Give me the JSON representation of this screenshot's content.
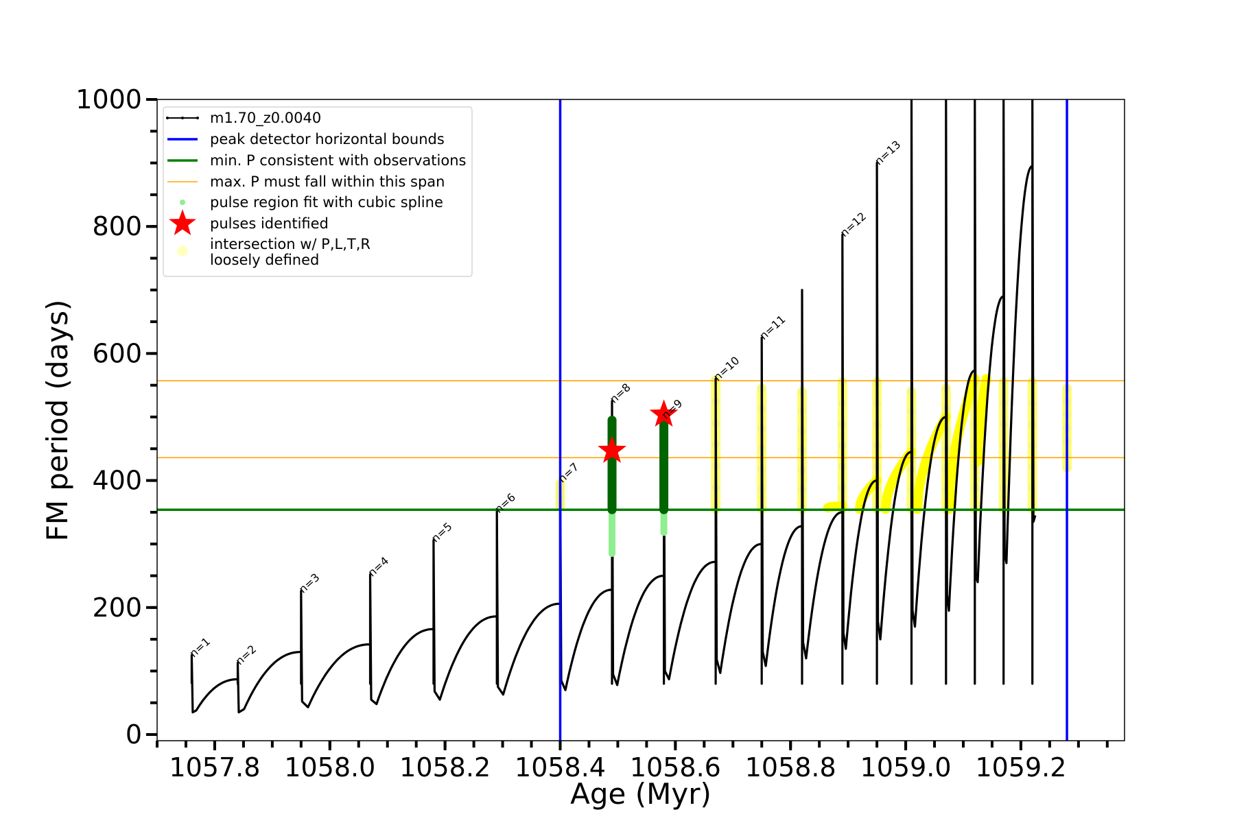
{
  "chart_data": {
    "type": "line",
    "xlabel": "Age (Myr)",
    "ylabel": "FM period (days)",
    "xlim": [
      1057.7,
      1059.38
    ],
    "ylim": [
      -10,
      1000
    ],
    "xticks": [
      1057.8,
      1058.0,
      1058.2,
      1058.4,
      1058.6,
      1058.8,
      1059.0,
      1059.2
    ],
    "xtick_labels": [
      "1057.8",
      "1058.0",
      "1058.2",
      "1058.4",
      "1058.6",
      "1058.8",
      "1059.0",
      "1059.2"
    ],
    "yticks": [
      0,
      200,
      400,
      600,
      800,
      1000
    ],
    "ytick_labels": [
      "0",
      "200",
      "400",
      "600",
      "800",
      "1000"
    ],
    "legend_position": "top-left",
    "legend": [
      {
        "label": "m1.70_z0.0040",
        "kind": "line-marker",
        "color": "#000000"
      },
      {
        "label": "peak detector horizontal bounds",
        "kind": "line",
        "color": "#0000ff"
      },
      {
        "label": "min. P consistent with observations",
        "kind": "line",
        "color": "#008000"
      },
      {
        "label": "max. P must fall within this span",
        "kind": "thin-line",
        "color": "#ffa500"
      },
      {
        "label": "pulse region fit with cubic spline",
        "kind": "dot",
        "color": "#90ee90"
      },
      {
        "label": "pulses identified",
        "kind": "star",
        "color": "#ff0000"
      },
      {
        "label": "intersection w/ P,L,T,R",
        "label2": "loosely defined",
        "kind": "circle",
        "color": "#ffff99"
      }
    ],
    "reference_lines": {
      "blue_vertical_x": [
        1058.4,
        1059.28
      ],
      "green_horizontal_y": 354,
      "orange_horizontal_y": [
        436,
        557
      ]
    },
    "pulses": [
      {
        "label": "n=1",
        "x": 1057.76,
        "peak": 125,
        "drop": 35,
        "trough": 38,
        "next_x": 1057.84
      },
      {
        "label": "n=2",
        "x": 1057.84,
        "peak": 113,
        "drop": 35,
        "trough": 40,
        "next_x": 1057.95
      },
      {
        "label": "n=3",
        "x": 1057.95,
        "peak": 226,
        "drop": 52,
        "trough": 43,
        "next_x": 1058.07
      },
      {
        "label": "n=4",
        "x": 1058.07,
        "peak": 252,
        "drop": 55,
        "trough": 48,
        "next_x": 1058.18
      },
      {
        "label": "n=5",
        "x": 1058.18,
        "peak": 306,
        "drop": 68,
        "trough": 55,
        "next_x": 1058.29
      },
      {
        "label": "n=6",
        "x": 1058.29,
        "peak": 352,
        "drop": 75,
        "trough": 63,
        "next_x": 1058.4
      },
      {
        "label": "n=7",
        "x": 1058.4,
        "peak": 400,
        "drop": 85,
        "trough": 70,
        "next_x": 1058.49
      },
      {
        "label": "n=8",
        "x": 1058.49,
        "peak": 525,
        "drop": 95,
        "trough": 78,
        "next_x": 1058.58
      },
      {
        "label": "n=9",
        "x": 1058.58,
        "peak": 500,
        "drop": 100,
        "trough": 87,
        "next_x": 1058.67
      },
      {
        "label": "n=10",
        "x": 1058.67,
        "peak": 560,
        "drop": 118,
        "trough": 97,
        "next_x": 1058.75
      },
      {
        "label": "n=11",
        "x": 1058.75,
        "peak": 625,
        "drop": 130,
        "trough": 108,
        "next_x": 1058.82
      },
      {
        "label": "",
        "x": 1058.82,
        "peak": 700,
        "drop": 145,
        "trough": 120,
        "next_x": 1058.89
      },
      {
        "label": "n=12",
        "x": 1058.89,
        "peak": 787,
        "drop": 160,
        "trough": 135,
        "next_x": 1058.95
      },
      {
        "label": "n=13",
        "x": 1058.95,
        "peak": 900,
        "drop": 178,
        "trough": 150,
        "next_x": 1059.01
      },
      {
        "label": "",
        "x": 1059.01,
        "peak": 1000,
        "drop": 195,
        "trough": 170,
        "next_x": 1059.07
      },
      {
        "label": "",
        "x": 1059.07,
        "peak": 1000,
        "drop": 220,
        "trough": 195,
        "next_x": 1059.12
      },
      {
        "label": "",
        "x": 1059.12,
        "peak": 1000,
        "drop": 250,
        "trough": 240,
        "next_x": 1059.17
      },
      {
        "label": "",
        "x": 1059.17,
        "peak": 1000,
        "drop": 285,
        "trough": 270,
        "next_x": 1059.22
      },
      {
        "label": "",
        "x": 1059.22,
        "peak": 1000,
        "drop": 335,
        "trough": 345,
        "next_x": 1059.27
      }
    ],
    "cycle_end_values": [
      87,
      130,
      142,
      166,
      186,
      206,
      228,
      250,
      272,
      300,
      328,
      350,
      400,
      445,
      500,
      573,
      690,
      895
    ],
    "final_segment": {
      "x_start": 1059.27,
      "y_start": 345,
      "x_peak": 1059.275,
      "y_peak": 1000,
      "x_end": 1059.295,
      "y_end": 0
    },
    "identified_pulses": [
      {
        "x": 1058.49,
        "y": 447
      },
      {
        "x": 1058.58,
        "y": 504
      }
    ],
    "spline_regions": [
      {
        "x": 1058.49,
        "y_min": 285,
        "y_max": 495
      },
      {
        "x": 1058.58,
        "y_min": 318,
        "y_max": 500
      }
    ],
    "loose_intersections": [
      {
        "x": 1058.4,
        "y_min": 360,
        "y_max": 395
      },
      {
        "x": 1058.67,
        "y_min": 355,
        "y_max": 558
      },
      {
        "x": 1058.75,
        "y_min": 355,
        "y_max": 545
      },
      {
        "x": 1058.82,
        "y_min": 355,
        "y_max": 540
      },
      {
        "x": 1058.89,
        "y_min": 355,
        "y_max": 555
      },
      {
        "x": 1058.95,
        "y_min": 355,
        "y_max": 555
      },
      {
        "x": 1059.01,
        "y_min": 355,
        "y_max": 540
      },
      {
        "x": 1059.07,
        "y_min": 355,
        "y_max": 545
      },
      {
        "x": 1059.12,
        "y_min": 355,
        "y_max": 555
      },
      {
        "x": 1059.17,
        "y_min": 355,
        "y_max": 555
      },
      {
        "x": 1059.22,
        "y_min": 355,
        "y_max": 555
      },
      {
        "x": 1059.28,
        "y_min": 420,
        "y_max": 545
      }
    ],
    "loose_arcs": [
      {
        "x0": 1058.865,
        "x1": 1058.89,
        "y0": 357,
        "y1": 360
      },
      {
        "x0": 1058.92,
        "x1": 1058.95,
        "y0": 355,
        "y1": 400
      },
      {
        "x0": 1058.965,
        "x1": 1059.01,
        "y0": 355,
        "y1": 445
      },
      {
        "x0": 1059.02,
        "x1": 1059.07,
        "y0": 355,
        "y1": 500
      },
      {
        "x0": 1059.075,
        "x1": 1059.12,
        "y0": 355,
        "y1": 560
      },
      {
        "x0": 1059.125,
        "x1": 1059.14,
        "y0": 430,
        "y1": 560
      }
    ]
  }
}
